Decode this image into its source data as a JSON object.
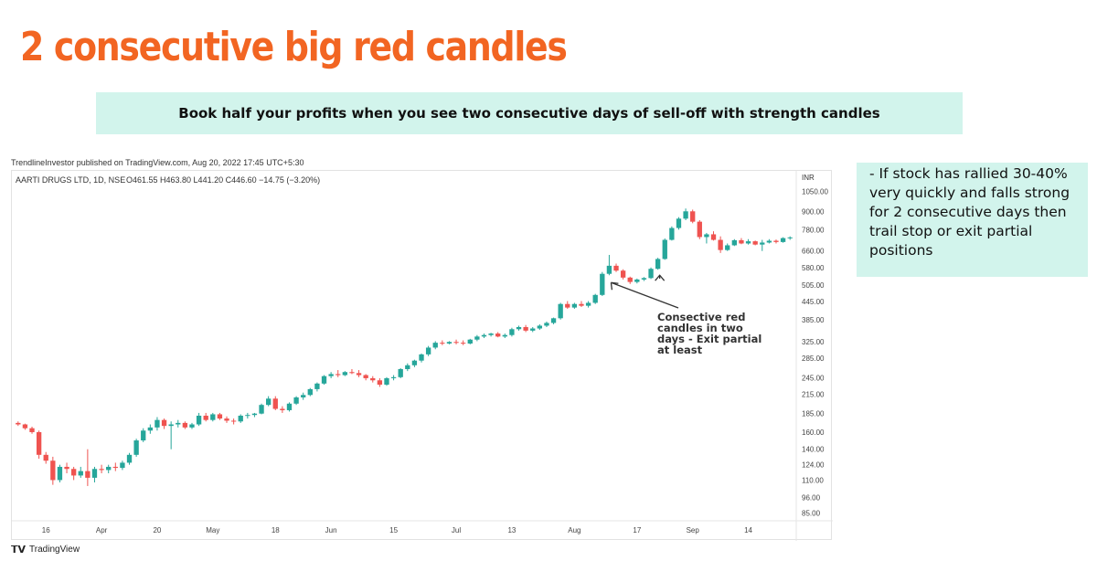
{
  "slide": {
    "title": "2 consecutive big red candles",
    "subtitle": "Book half your profits when you see two consecutive days of sell-off with strength candles",
    "note": "- If stock has rallied 30-40% very quickly and falls strong for 2 consecutive days then trail stop or exit partial positions"
  },
  "colors": {
    "title": "#f26522",
    "subtitle_bg": "#d2f4ec",
    "note_bg": "#d2f4ec",
    "up": "#26a69a",
    "down": "#ef5350"
  },
  "published_line": "TrendlineInvestor published on TradingView.com, Aug 20, 2022 17:45 UTC+5:30",
  "footer_brand": "TradingView",
  "footer_brand_icon": "tradingview-logo-icon",
  "chart_data": {
    "type": "candlestick",
    "title": "AARTI DRUGS LTD, 1D, NSE",
    "ohlc_label": "O461.55  H463.80  L441.20  C446.60  −14.75 (−3.20%)",
    "currency": "INR",
    "yscale": "log",
    "ylim": [
      80,
      1150
    ],
    "y_ticks": [
      1050,
      900,
      780,
      660,
      580,
      505,
      445,
      385,
      325,
      285,
      245,
      215,
      185,
      160,
      140,
      124,
      110,
      96,
      85
    ],
    "x_ticks": [
      {
        "label": "16",
        "i": 4
      },
      {
        "label": "Apr",
        "i": 12
      },
      {
        "label": "20",
        "i": 20
      },
      {
        "label": "May",
        "i": 28
      },
      {
        "label": "18",
        "i": 37
      },
      {
        "label": "Jun",
        "i": 45
      },
      {
        "label": "15",
        "i": 54
      },
      {
        "label": "Jul",
        "i": 63
      },
      {
        "label": "13",
        "i": 71
      },
      {
        "label": "Aug",
        "i": 80
      },
      {
        "label": "17",
        "i": 89
      },
      {
        "label": "Sep",
        "i": 97
      },
      {
        "label": "14",
        "i": 105
      }
    ],
    "annotation": {
      "text_lines": [
        "Consective red",
        "candles in two",
        "days - Exit partial",
        "at least"
      ],
      "arrow1_target_i": 85,
      "arrow2_target_i": 92
    },
    "candles": [
      [
        172,
        174,
        168,
        170
      ],
      [
        170,
        171,
        163,
        165
      ],
      [
        165,
        167,
        158,
        160
      ],
      [
        160,
        162,
        130,
        134
      ],
      [
        134,
        137,
        125,
        128
      ],
      [
        128,
        132,
        106,
        110
      ],
      [
        110,
        124,
        108,
        122
      ],
      [
        122,
        126,
        116,
        120
      ],
      [
        120,
        122,
        110,
        114
      ],
      [
        114,
        122,
        112,
        118
      ],
      [
        118,
        140,
        105,
        112
      ],
      [
        112,
        122,
        108,
        120
      ],
      [
        120,
        124,
        116,
        119
      ],
      [
        119,
        124,
        116,
        122
      ],
      [
        122,
        126,
        118,
        121
      ],
      [
        121,
        128,
        119,
        126
      ],
      [
        126,
        136,
        124,
        134
      ],
      [
        134,
        152,
        132,
        150
      ],
      [
        150,
        165,
        148,
        162
      ],
      [
        162,
        170,
        158,
        166
      ],
      [
        166,
        180,
        162,
        176
      ],
      [
        176,
        178,
        164,
        168
      ],
      [
        168,
        174,
        140,
        170
      ],
      [
        170,
        176,
        166,
        172
      ],
      [
        172,
        174,
        164,
        166
      ],
      [
        166,
        172,
        164,
        170
      ],
      [
        170,
        186,
        168,
        182
      ],
      [
        182,
        186,
        174,
        176
      ],
      [
        176,
        186,
        174,
        184
      ],
      [
        184,
        186,
        176,
        178
      ],
      [
        178,
        181,
        172,
        175
      ],
      [
        175,
        178,
        170,
        174
      ],
      [
        174,
        184,
        172,
        182
      ],
      [
        182,
        186,
        178,
        183
      ],
      [
        183,
        186,
        180,
        185
      ],
      [
        185,
        200,
        184,
        198
      ],
      [
        198,
        212,
        196,
        208
      ],
      [
        208,
        212,
        190,
        192
      ],
      [
        192,
        196,
        186,
        190
      ],
      [
        190,
        202,
        188,
        200
      ],
      [
        200,
        212,
        198,
        210
      ],
      [
        210,
        218,
        206,
        214
      ],
      [
        214,
        226,
        212,
        224
      ],
      [
        224,
        236,
        220,
        234
      ],
      [
        234,
        250,
        232,
        248
      ],
      [
        248,
        256,
        244,
        252
      ],
      [
        252,
        260,
        246,
        250
      ],
      [
        250,
        258,
        248,
        256
      ],
      [
        256,
        262,
        252,
        254
      ],
      [
        254,
        260,
        246,
        250
      ],
      [
        250,
        252,
        240,
        244
      ],
      [
        244,
        248,
        236,
        240
      ],
      [
        240,
        244,
        228,
        232
      ],
      [
        232,
        246,
        230,
        244
      ],
      [
        244,
        250,
        240,
        246
      ],
      [
        246,
        264,
        244,
        262
      ],
      [
        262,
        274,
        258,
        270
      ],
      [
        270,
        282,
        266,
        280
      ],
      [
        280,
        296,
        276,
        294
      ],
      [
        294,
        314,
        290,
        310
      ],
      [
        310,
        326,
        306,
        322
      ],
      [
        322,
        328,
        316,
        320
      ],
      [
        320,
        326,
        318,
        324
      ],
      [
        324,
        330,
        318,
        322
      ],
      [
        322,
        328,
        316,
        320
      ],
      [
        320,
        332,
        318,
        330
      ],
      [
        330,
        342,
        326,
        338
      ],
      [
        338,
        346,
        334,
        342
      ],
      [
        342,
        348,
        338,
        346
      ],
      [
        346,
        350,
        336,
        338
      ],
      [
        338,
        346,
        334,
        342
      ],
      [
        342,
        362,
        338,
        358
      ],
      [
        358,
        368,
        354,
        364
      ],
      [
        364,
        370,
        350,
        354
      ],
      [
        354,
        364,
        350,
        360
      ],
      [
        360,
        372,
        356,
        368
      ],
      [
        368,
        380,
        364,
        376
      ],
      [
        376,
        392,
        372,
        390
      ],
      [
        390,
        440,
        386,
        436
      ],
      [
        436,
        446,
        420,
        424
      ],
      [
        424,
        440,
        420,
        436
      ],
      [
        436,
        446,
        426,
        430
      ],
      [
        430,
        446,
        424,
        440
      ],
      [
        440,
        472,
        436,
        468
      ],
      [
        468,
        560,
        464,
        552
      ],
      [
        552,
        640,
        546,
        588
      ],
      [
        588,
        598,
        560,
        566
      ],
      [
        566,
        572,
        528,
        536
      ],
      [
        536,
        540,
        510,
        518
      ],
      [
        518,
        532,
        512,
        528
      ],
      [
        528,
        538,
        522,
        534
      ],
      [
        534,
        580,
        530,
        574
      ],
      [
        574,
        626,
        570,
        620
      ],
      [
        620,
        728,
        616,
        720
      ],
      [
        720,
        800,
        716,
        790
      ],
      [
        790,
        860,
        780,
        850
      ],
      [
        850,
        920,
        840,
        900
      ],
      [
        900,
        912,
        820,
        830
      ],
      [
        830,
        840,
        724,
        736
      ],
      [
        736,
        760,
        700,
        752
      ],
      [
        752,
        770,
        716,
        720
      ],
      [
        720,
        740,
        650,
        665
      ],
      [
        665,
        700,
        660,
        690
      ],
      [
        690,
        724,
        686,
        718
      ],
      [
        718,
        730,
        696,
        700
      ],
      [
        700,
        724,
        694,
        712
      ],
      [
        712,
        716,
        690,
        694
      ],
      [
        694,
        720,
        660,
        705
      ],
      [
        705,
        724,
        700,
        715
      ],
      [
        715,
        722,
        700,
        708
      ],
      [
        708,
        735,
        704,
        730
      ],
      [
        730,
        740,
        720,
        734
      ]
    ]
  }
}
